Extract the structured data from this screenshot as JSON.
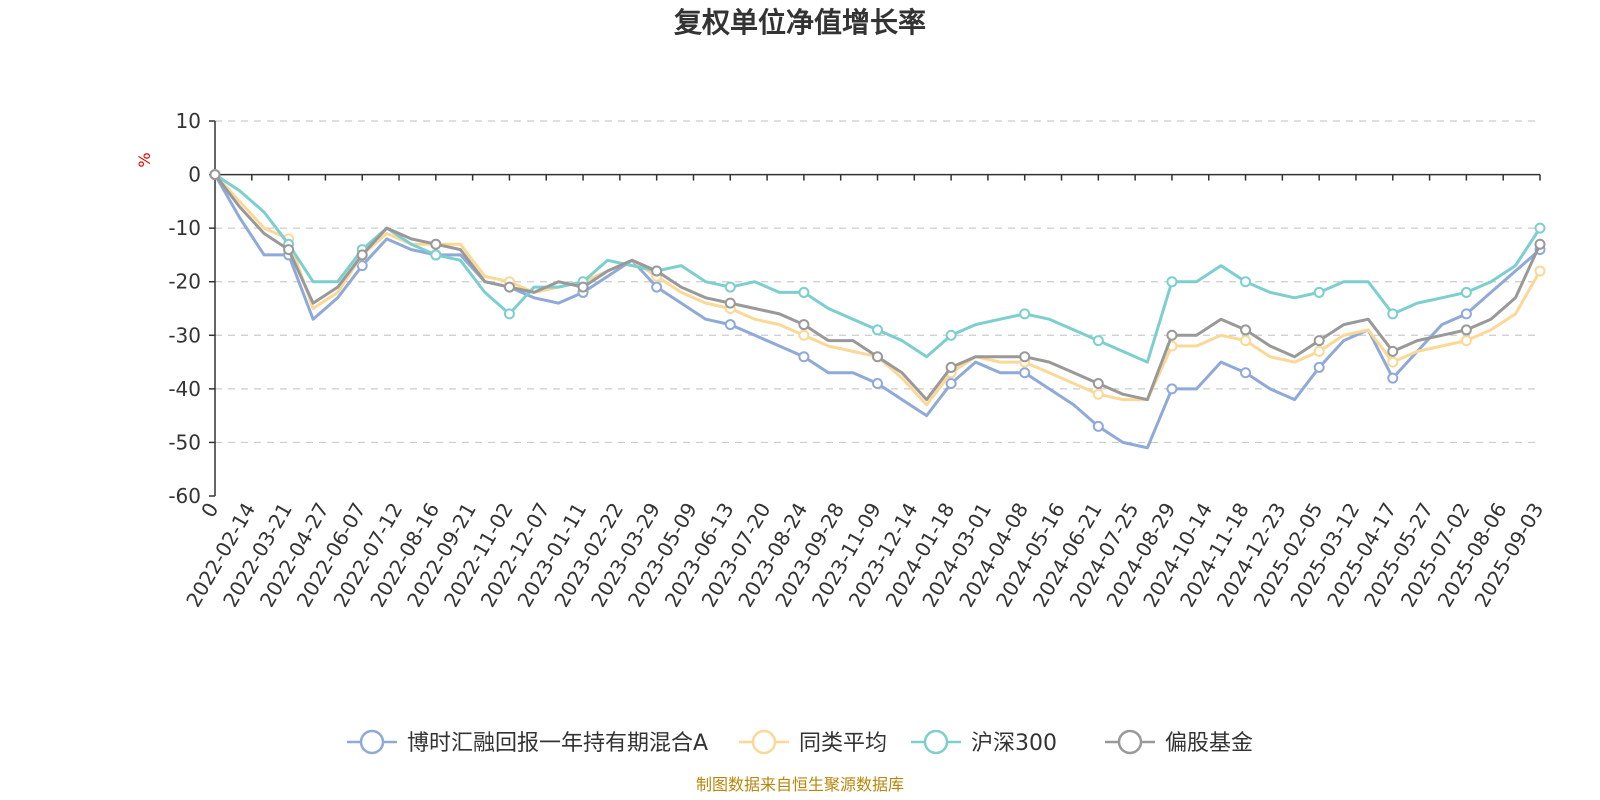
{
  "chart_data": {
    "type": "line",
    "title": "复权单位净值增长率",
    "ylabel": "%",
    "ylim": [
      -60,
      10
    ],
    "yticks": [
      10,
      0,
      -10,
      -20,
      -30,
      -40,
      -50,
      -60
    ],
    "ytick_labels": [
      "10",
      "0",
      "-10",
      "-20",
      "-30",
      "-40",
      "-50",
      "-60"
    ],
    "x_start_label": "0",
    "x_tick_labels": [
      "2022-02-14",
      "2022-03-21",
      "2022-04-27",
      "2022-06-07",
      "2022-07-12",
      "2022-08-16",
      "2022-09-21",
      "2022-11-02",
      "2022-12-07",
      "2023-01-11",
      "2023-02-22",
      "2023-03-29",
      "2023-05-09",
      "2023-06-13",
      "2023-07-20",
      "2023-08-24",
      "2023-09-28",
      "2023-11-09",
      "2023-12-14",
      "2024-01-18",
      "2024-03-01",
      "2024-04-08",
      "2024-05-16",
      "2024-06-21",
      "2024-07-25",
      "2024-08-29",
      "2024-10-14",
      "2024-11-18",
      "2024-12-23",
      "2025-02-05",
      "2025-03-12",
      "2025-04-17",
      "2025-05-27",
      "2025-07-02",
      "2025-08-06",
      "2025-09-03"
    ],
    "grid": true,
    "legend_position": "bottom",
    "series": [
      {
        "name": "博时汇融回报一年持有期混合A",
        "color": "#8fa9d9",
        "values": [
          0,
          -8,
          -15,
          -15,
          -27,
          -23,
          -17,
          -12,
          -14,
          -15,
          -15,
          -20,
          -21,
          -23,
          -24,
          -22,
          -19,
          -16,
          -21,
          -24,
          -27,
          -28,
          -30,
          -32,
          -34,
          -37,
          -37,
          -39,
          -42,
          -45,
          -39,
          -35,
          -37,
          -37,
          -40,
          -43,
          -47,
          -50,
          -51,
          -40,
          -40,
          -35,
          -37,
          -40,
          -42,
          -36,
          -31,
          -29,
          -38,
          -33,
          -28,
          -26,
          -22,
          -18,
          -14
        ]
      },
      {
        "name": "同类平均",
        "color": "#fcd896",
        "values": [
          0,
          -5,
          -10,
          -12,
          -25,
          -22,
          -15,
          -11,
          -13,
          -13,
          -13,
          -19,
          -20,
          -22,
          -21,
          -20,
          -18,
          -16,
          -19,
          -22,
          -24,
          -25,
          -27,
          -28,
          -30,
          -32,
          -33,
          -34,
          -38,
          -43,
          -37,
          -34,
          -35,
          -35,
          -37,
          -39,
          -41,
          -42,
          -42,
          -32,
          -32,
          -30,
          -31,
          -34,
          -35,
          -33,
          -30,
          -29,
          -35,
          -33,
          -32,
          -31,
          -29,
          -26,
          -18
        ]
      },
      {
        "name": "沪深300",
        "color": "#7dcfcf",
        "values": [
          0,
          -3,
          -7,
          -13,
          -20,
          -20,
          -14,
          -10,
          -13,
          -15,
          -16,
          -22,
          -26,
          -21,
          -21,
          -20,
          -16,
          -17,
          -18,
          -17,
          -20,
          -21,
          -20,
          -22,
          -22,
          -25,
          -27,
          -29,
          -31,
          -34,
          -30,
          -28,
          -27,
          -26,
          -27,
          -29,
          -31,
          -33,
          -35,
          -20,
          -20,
          -17,
          -20,
          -22,
          -23,
          -22,
          -20,
          -20,
          -26,
          -24,
          -23,
          -22,
          -20,
          -17,
          -10
        ]
      },
      {
        "name": "偏股基金",
        "color": "#999999",
        "values": [
          0,
          -6,
          -11,
          -14,
          -24,
          -21,
          -15,
          -10,
          -12,
          -13,
          -14,
          -20,
          -21,
          -22,
          -20,
          -21,
          -18,
          -16,
          -18,
          -21,
          -23,
          -24,
          -25,
          -26,
          -28,
          -31,
          -31,
          -34,
          -37,
          -42,
          -36,
          -34,
          -34,
          -34,
          -35,
          -37,
          -39,
          -41,
          -42,
          -30,
          -30,
          -27,
          -29,
          -32,
          -34,
          -31,
          -28,
          -27,
          -33,
          -31,
          -30,
          -29,
          -27,
          -23,
          -13
        ]
      }
    ]
  },
  "footer": {
    "source": "制图数据来自恒生聚源数据库"
  }
}
